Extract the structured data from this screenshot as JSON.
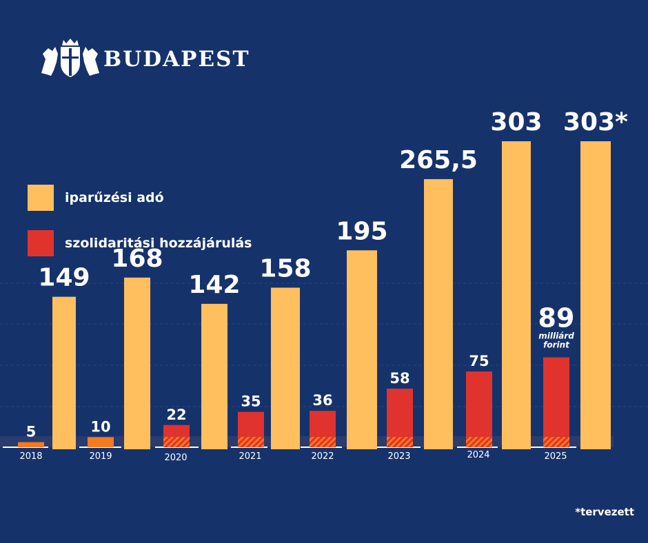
{
  "brand": {
    "name": "BUDAPEST"
  },
  "legend": [
    {
      "label": "iparűzési adó",
      "color": "#ffbf5f"
    },
    {
      "label": "szolidaritási hozzájárulás",
      "color": "#e0332d"
    }
  ],
  "footnote": "*tervezett",
  "colors": {
    "background": "#16326b",
    "iparuzesi": "#ffbf5f",
    "szolidaritasi": "#e0332d",
    "early_contribution": "#f47a1f",
    "baseline": "#ffffff",
    "gridline": "#2a4580"
  },
  "chart_data": {
    "type": "bar",
    "categories": [
      "2018",
      "2019",
      "2020",
      "2021",
      "2022",
      "2023",
      "2024",
      "2025"
    ],
    "series": [
      {
        "name": "szolidaritási hozzájárulás",
        "values": [
          5,
          10,
          22,
          35,
          36,
          58,
          75,
          89
        ],
        "labels": [
          "5",
          "10",
          "22",
          "35",
          "36",
          "58",
          "75",
          "89"
        ]
      },
      {
        "name": "iparűzési adó",
        "values": [
          149,
          168,
          142,
          158,
          195,
          265.5,
          303,
          303
        ],
        "labels": [
          "149",
          "168",
          "142",
          "158",
          "195",
          "265,5",
          "303",
          "303*"
        ]
      }
    ],
    "annotations": [
      {
        "category": "2025",
        "series": "szolidaritási hozzájárulás",
        "text": [
          "milliárd",
          "forint"
        ]
      }
    ],
    "grid": true,
    "legend_position": "left"
  }
}
